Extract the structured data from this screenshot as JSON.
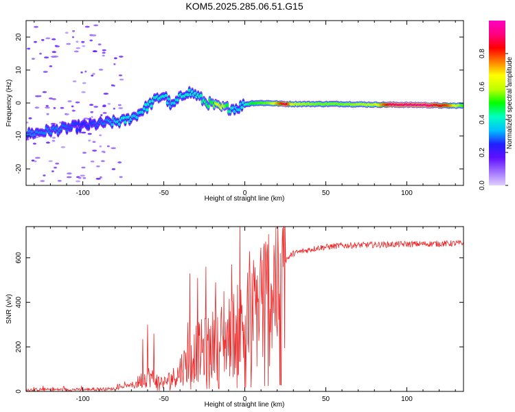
{
  "title": "KOM5.2025.285.06.51.G15",
  "chart_data": [
    {
      "type": "heatmap",
      "name": "spectrogram",
      "xlabel": "Height of straight line (km)",
      "ylabel": "Frequency (Hz)",
      "xlim": [
        -135,
        135
      ],
      "ylim": [
        -25,
        25
      ],
      "xticks": [
        -100,
        -50,
        0,
        50,
        100
      ],
      "yticks": [
        -20,
        -10,
        0,
        10,
        20
      ],
      "colorbar": {
        "label": "Normalized spectral amplitude",
        "range": [
          0.0,
          1.0
        ],
        "ticks": [
          0.0,
          0.2,
          0.4,
          0.6,
          0.8
        ],
        "tick_labels": [
          "0.0",
          "0.2",
          "0.4",
          "0.6",
          "0.8"
        ],
        "stops": [
          "#e0d0ff",
          "#a070ff",
          "#6010ff",
          "#2020ff",
          "#00c0ff",
          "#00ffc0",
          "#00ff00",
          "#c0ff00",
          "#ffff00",
          "#ff8000",
          "#ff0000",
          "#ff0080",
          "#ff00c0"
        ]
      },
      "ridge": [
        {
          "x": -135,
          "f": -9.5,
          "a": 0.3
        },
        {
          "x": -115,
          "f": -8.0,
          "a": 0.3
        },
        {
          "x": -100,
          "f": -7.0,
          "a": 0.25
        },
        {
          "x": -85,
          "f": -6.0,
          "a": 0.3
        },
        {
          "x": -75,
          "f": -5.5,
          "a": 0.4
        },
        {
          "x": -68,
          "f": -4.0,
          "a": 0.35
        },
        {
          "x": -60,
          "f": -1.0,
          "a": 0.4
        },
        {
          "x": -55,
          "f": 1.0,
          "a": 0.4
        },
        {
          "x": -50,
          "f": 2.5,
          "a": 0.4
        },
        {
          "x": -45,
          "f": -1.0,
          "a": 0.35
        },
        {
          "x": -40,
          "f": 1.5,
          "a": 0.4
        },
        {
          "x": -36,
          "f": 3.5,
          "a": 0.4
        },
        {
          "x": -30,
          "f": 2.5,
          "a": 0.4
        },
        {
          "x": -25,
          "f": 0.5,
          "a": 0.45
        },
        {
          "x": -20,
          "f": -0.5,
          "a": 0.5
        },
        {
          "x": -15,
          "f": -1.5,
          "a": 0.7
        },
        {
          "x": -10,
          "f": -1.5,
          "a": 0.45
        },
        {
          "x": -5,
          "f": -1.5,
          "a": 0.35
        },
        {
          "x": 0,
          "f": -0.5,
          "a": 0.4
        },
        {
          "x": 5,
          "f": 0.0,
          "a": 0.5
        },
        {
          "x": 15,
          "f": 0.0,
          "a": 0.55
        },
        {
          "x": 25,
          "f": -0.3,
          "a": 0.9
        },
        {
          "x": 30,
          "f": -0.3,
          "a": 0.6
        },
        {
          "x": 45,
          "f": -0.3,
          "a": 0.55
        },
        {
          "x": 60,
          "f": -0.3,
          "a": 0.55
        },
        {
          "x": 80,
          "f": -0.5,
          "a": 0.6
        },
        {
          "x": 90,
          "f": -0.5,
          "a": 0.9
        },
        {
          "x": 110,
          "f": -0.6,
          "a": 0.95
        },
        {
          "x": 125,
          "f": -0.8,
          "a": 0.8
        },
        {
          "x": 135,
          "f": -0.8,
          "a": 0.5
        }
      ]
    },
    {
      "type": "line",
      "name": "snr",
      "xlabel": "Height of straight line (km)",
      "ylabel": "SNR (v/v)",
      "xlim": [
        -135,
        135
      ],
      "ylim": [
        0,
        740
      ],
      "xticks": [
        -100,
        -50,
        0,
        50,
        100
      ],
      "yticks": [
        0,
        200,
        400,
        600
      ],
      "color": "#ee2222",
      "envelope": [
        {
          "x": -135,
          "y": 8
        },
        {
          "x": -100,
          "y": 8
        },
        {
          "x": -80,
          "y": 12
        },
        {
          "x": -70,
          "y": 30
        },
        {
          "x": -60,
          "y": 90
        },
        {
          "x": -50,
          "y": 50
        },
        {
          "x": -40,
          "y": 110
        },
        {
          "x": -30,
          "y": 190
        },
        {
          "x": -20,
          "y": 230
        },
        {
          "x": -10,
          "y": 270
        },
        {
          "x": 0,
          "y": 330
        },
        {
          "x": 10,
          "y": 440
        },
        {
          "x": 20,
          "y": 560
        },
        {
          "x": 30,
          "y": 620
        },
        {
          "x": 45,
          "y": 645
        },
        {
          "x": 60,
          "y": 655
        },
        {
          "x": 90,
          "y": 660
        },
        {
          "x": 135,
          "y": 665
        }
      ],
      "peaks": [
        {
          "x": -63,
          "y": 235
        },
        {
          "x": -60,
          "y": 300
        },
        {
          "x": -56,
          "y": 260
        },
        {
          "x": -35,
          "y": 310
        },
        {
          "x": -34,
          "y": 530
        },
        {
          "x": -29,
          "y": 510
        },
        {
          "x": -24,
          "y": 560
        },
        {
          "x": -18,
          "y": 490
        },
        {
          "x": -13,
          "y": 450
        },
        {
          "x": -8,
          "y": 570
        },
        {
          "x": -3,
          "y": 740
        },
        {
          "x": 3,
          "y": 630
        },
        {
          "x": 10,
          "y": 645
        }
      ]
    }
  ]
}
